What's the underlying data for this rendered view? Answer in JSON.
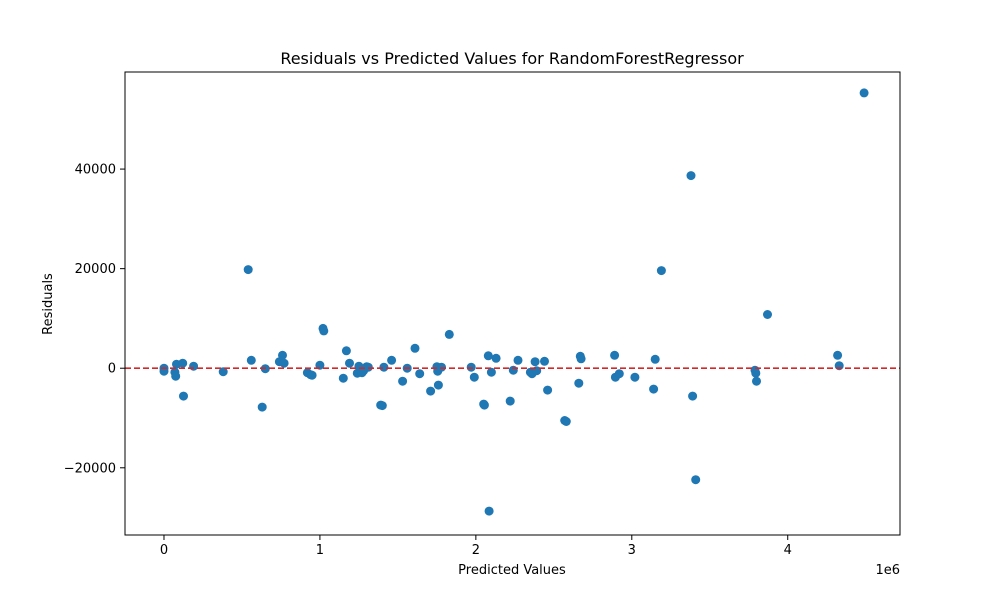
{
  "chart_data": {
    "type": "scatter",
    "title": "Residuals vs Predicted Values for RandomForestRegressor",
    "xlabel": "Predicted Values",
    "ylabel": "Residuals",
    "x_offset_label": "1e6",
    "xlim": [
      -250000,
      4720000
    ],
    "ylim": [
      -33500,
      59500
    ],
    "x_ticks": [
      {
        "value": 0,
        "label": "0"
      },
      {
        "value": 1000000,
        "label": "1"
      },
      {
        "value": 2000000,
        "label": "2"
      },
      {
        "value": 3000000,
        "label": "3"
      },
      {
        "value": 4000000,
        "label": "4"
      }
    ],
    "y_ticks": [
      {
        "value": -20000,
        "label": "−20000"
      },
      {
        "value": 0,
        "label": "0"
      },
      {
        "value": 20000,
        "label": "20000"
      },
      {
        "value": 40000,
        "label": "40000"
      }
    ],
    "reference_line": {
      "y": 0,
      "color": "#d62728",
      "style": "dashed"
    },
    "marker_color": "#1f77b4",
    "grid": false,
    "series": [
      {
        "points": [
          [
            0,
            0
          ],
          [
            0,
            -600
          ],
          [
            70000,
            -800
          ],
          [
            75000,
            -1600
          ],
          [
            80000,
            800
          ],
          [
            120000,
            1000
          ],
          [
            125000,
            -5600
          ],
          [
            190000,
            400
          ],
          [
            380000,
            -700
          ],
          [
            540000,
            19800
          ],
          [
            560000,
            1600
          ],
          [
            630000,
            -7800
          ],
          [
            650000,
            -100
          ],
          [
            740000,
            1300
          ],
          [
            760000,
            2600
          ],
          [
            770000,
            1000
          ],
          [
            920000,
            -900
          ],
          [
            940000,
            -1300
          ],
          [
            950000,
            -1400
          ],
          [
            1000000,
            600
          ],
          [
            1020000,
            8000
          ],
          [
            1025000,
            7500
          ],
          [
            1150000,
            -2000
          ],
          [
            1170000,
            3500
          ],
          [
            1190000,
            1000
          ],
          [
            1240000,
            -1000
          ],
          [
            1250000,
            400
          ],
          [
            1270000,
            -900
          ],
          [
            1280000,
            -500
          ],
          [
            1300000,
            300
          ],
          [
            1310000,
            200
          ],
          [
            1390000,
            -7400
          ],
          [
            1400000,
            -7500
          ],
          [
            1410000,
            200
          ],
          [
            1460000,
            1600
          ],
          [
            1530000,
            -2600
          ],
          [
            1560000,
            0
          ],
          [
            1610000,
            4000
          ],
          [
            1640000,
            -1100
          ],
          [
            1710000,
            -4600
          ],
          [
            1750000,
            300
          ],
          [
            1755000,
            -600
          ],
          [
            1760000,
            -3400
          ],
          [
            1780000,
            200
          ],
          [
            1830000,
            6800
          ],
          [
            1970000,
            200
          ],
          [
            1990000,
            -1800
          ],
          [
            2050000,
            -7200
          ],
          [
            2055000,
            -7400
          ],
          [
            2080000,
            2500
          ],
          [
            2085000,
            -28700
          ],
          [
            2100000,
            -800
          ],
          [
            2130000,
            2000
          ],
          [
            2220000,
            -6600
          ],
          [
            2240000,
            -400
          ],
          [
            2270000,
            1600
          ],
          [
            2350000,
            -800
          ],
          [
            2360000,
            -1100
          ],
          [
            2380000,
            1300
          ],
          [
            2390000,
            -500
          ],
          [
            2440000,
            1400
          ],
          [
            2460000,
            -4400
          ],
          [
            2570000,
            -10500
          ],
          [
            2580000,
            -10700
          ],
          [
            2660000,
            -3000
          ],
          [
            2670000,
            2400
          ],
          [
            2675000,
            1900
          ],
          [
            2890000,
            2600
          ],
          [
            2895000,
            -1800
          ],
          [
            2920000,
            -1100
          ],
          [
            3020000,
            -1800
          ],
          [
            3140000,
            -4200
          ],
          [
            3150000,
            1800
          ],
          [
            3190000,
            19600
          ],
          [
            3380000,
            38700
          ],
          [
            3390000,
            -5600
          ],
          [
            3410000,
            -22400
          ],
          [
            3790000,
            -400
          ],
          [
            3795000,
            -1000
          ],
          [
            3800000,
            -2600
          ],
          [
            3870000,
            10800
          ],
          [
            4320000,
            2600
          ],
          [
            4330000,
            500
          ],
          [
            4490000,
            55300
          ]
        ]
      }
    ]
  }
}
